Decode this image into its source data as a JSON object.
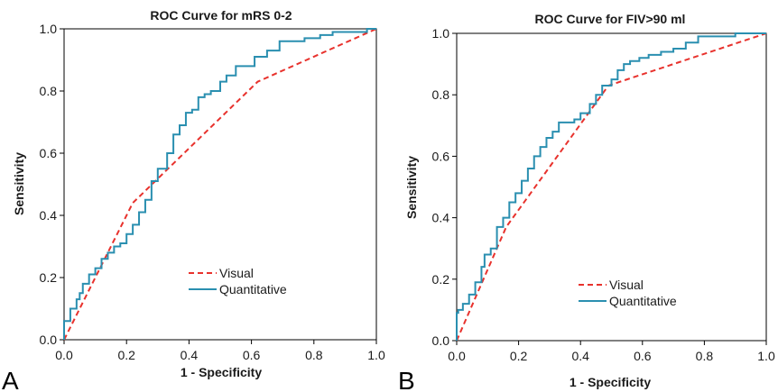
{
  "chart_data": [
    {
      "type": "line",
      "panel_letter": "A",
      "title": "ROC Curve for mRS 0-2",
      "xlabel": "1 - Specificity",
      "ylabel": "Sensitivity",
      "xlim": [
        0,
        1
      ],
      "ylim": [
        0,
        1
      ],
      "xticks": [
        "0.0",
        "0.2",
        "0.4",
        "0.6",
        "0.8",
        "1.0"
      ],
      "yticks": [
        "0.0",
        "0.2",
        "0.4",
        "0.6",
        "0.8",
        "1.0"
      ],
      "grid": false,
      "legend_position": "lower-right",
      "series": [
        {
          "name": "Visual",
          "color": "#e8322d",
          "style": "dashed",
          "x": [
            0,
            0.22,
            0.62,
            1.0
          ],
          "y": [
            0,
            0.44,
            0.83,
            1.0
          ]
        },
        {
          "name": "Quantitative",
          "color": "#2a8fb0",
          "style": "step",
          "x": [
            0,
            0.02,
            0.04,
            0.05,
            0.06,
            0.08,
            0.1,
            0.12,
            0.14,
            0.16,
            0.18,
            0.2,
            0.22,
            0.24,
            0.26,
            0.28,
            0.3,
            0.33,
            0.35,
            0.37,
            0.39,
            0.41,
            0.43,
            0.45,
            0.47,
            0.5,
            0.52,
            0.55,
            0.58,
            0.61,
            0.65,
            0.69,
            0.73,
            0.77,
            0.82,
            0.86,
            0.9,
            0.93,
            0.97,
            1.0
          ],
          "y": [
            0,
            0.06,
            0.1,
            0.13,
            0.15,
            0.18,
            0.21,
            0.23,
            0.26,
            0.28,
            0.3,
            0.31,
            0.34,
            0.37,
            0.41,
            0.45,
            0.51,
            0.55,
            0.6,
            0.66,
            0.69,
            0.73,
            0.74,
            0.78,
            0.79,
            0.8,
            0.83,
            0.85,
            0.88,
            0.88,
            0.91,
            0.93,
            0.96,
            0.96,
            0.97,
            0.98,
            0.99,
            0.99,
            0.99,
            1.0
          ]
        }
      ]
    },
    {
      "type": "line",
      "panel_letter": "B",
      "title": "ROC Curve for FIV>90 ml",
      "xlabel": "1 - Specificity",
      "ylabel": "Sensitivity",
      "xlim": [
        0,
        1
      ],
      "ylim": [
        0,
        1
      ],
      "xticks": [
        "0.0",
        "0.2",
        "0.4",
        "0.6",
        "0.8",
        "1.0"
      ],
      "yticks": [
        "0.0",
        "0.2",
        "0.4",
        "0.6",
        "0.8",
        "1.0"
      ],
      "grid": false,
      "legend_position": "lower-right",
      "series": [
        {
          "name": "Visual",
          "color": "#e8322d",
          "style": "dashed",
          "x": [
            0,
            0.16,
            0.49,
            1.0
          ],
          "y": [
            0,
            0.37,
            0.83,
            1.0
          ]
        },
        {
          "name": "Quantitative",
          "color": "#2a8fb0",
          "style": "step",
          "x": [
            0,
            0.005,
            0.02,
            0.04,
            0.06,
            0.08,
            0.09,
            0.11,
            0.13,
            0.15,
            0.17,
            0.19,
            0.21,
            0.23,
            0.25,
            0.27,
            0.29,
            0.31,
            0.33,
            0.35,
            0.38,
            0.4,
            0.43,
            0.45,
            0.47,
            0.5,
            0.52,
            0.54,
            0.56,
            0.59,
            0.62,
            0.66,
            0.7,
            0.74,
            0.78,
            0.81,
            0.84,
            0.9,
            0.95,
            1.0
          ],
          "y": [
            0,
            0.09,
            0.1,
            0.12,
            0.15,
            0.19,
            0.24,
            0.28,
            0.3,
            0.37,
            0.4,
            0.45,
            0.48,
            0.52,
            0.56,
            0.6,
            0.63,
            0.66,
            0.68,
            0.71,
            0.71,
            0.72,
            0.74,
            0.77,
            0.8,
            0.83,
            0.85,
            0.88,
            0.9,
            0.91,
            0.92,
            0.93,
            0.94,
            0.95,
            0.97,
            0.99,
            0.99,
            0.99,
            1.0,
            1.0
          ]
        }
      ]
    }
  ]
}
